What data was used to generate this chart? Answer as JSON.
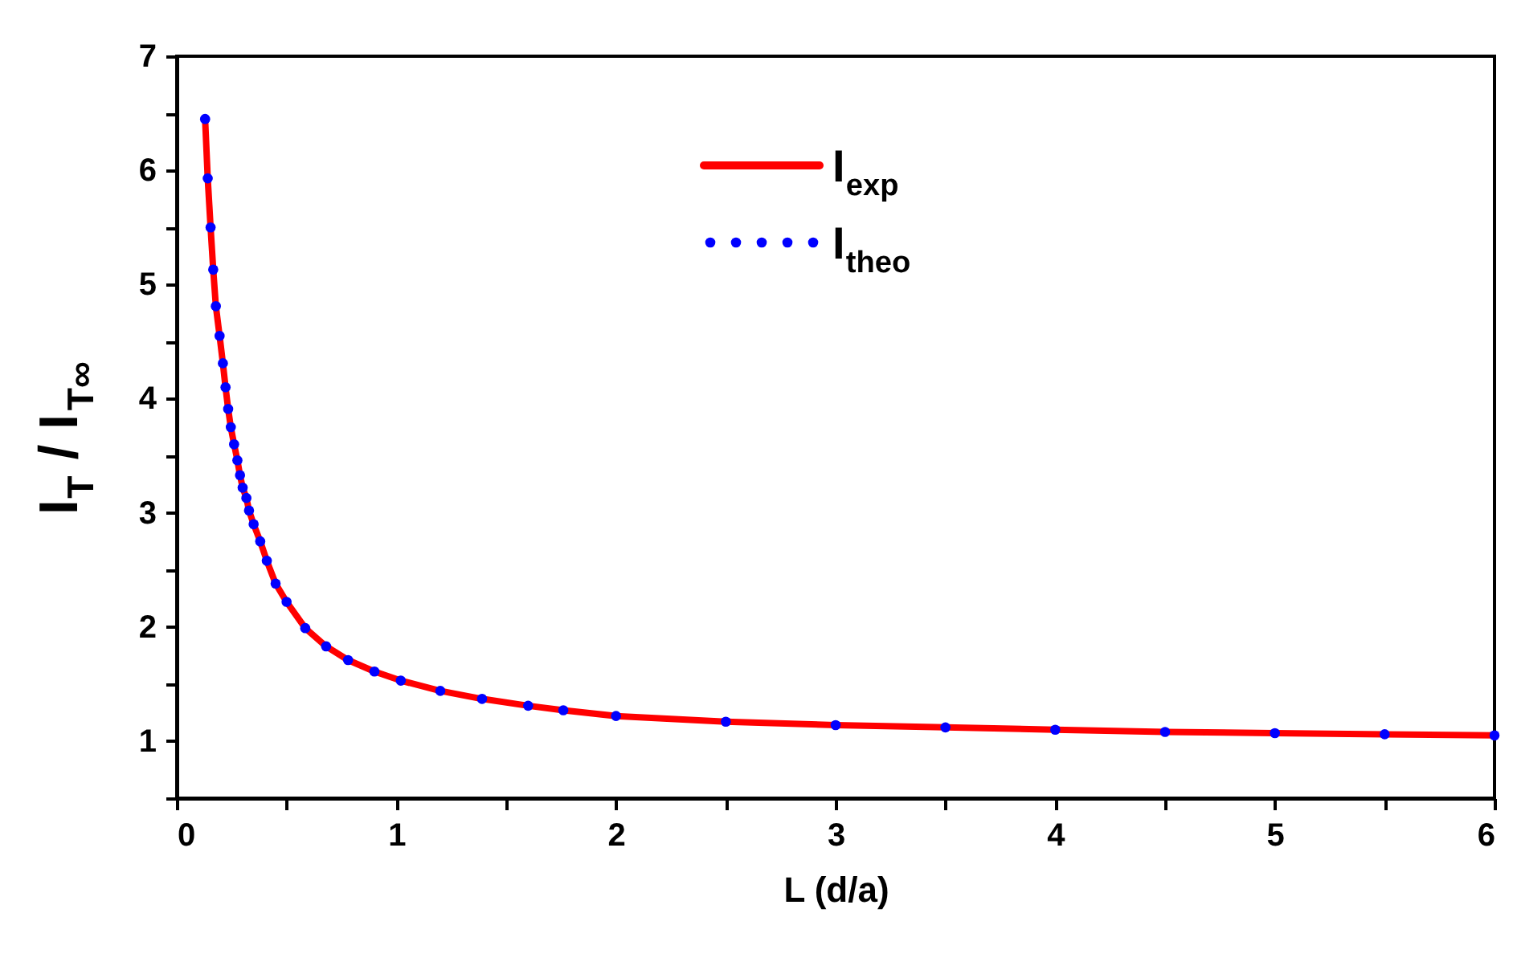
{
  "chart_data": {
    "type": "line",
    "xlabel": "L (d/a)",
    "ylabel": "I$_{T}$ / I$_{T∞}$",
    "x": [
      0.129,
      0.141,
      0.154,
      0.166,
      0.178,
      0.195,
      0.21,
      0.222,
      0.234,
      0.246,
      0.261,
      0.276,
      0.288,
      0.3,
      0.317,
      0.329,
      0.35,
      0.38,
      0.41,
      0.45,
      0.5,
      0.585,
      0.68,
      0.78,
      0.9,
      1.02,
      1.2,
      1.39,
      1.6,
      1.76,
      2,
      2.5,
      3,
      3.5,
      4,
      4.5,
      5,
      5.5,
      6
    ],
    "series": [
      {
        "name": "I$_{exp}$",
        "color": "#ff0000",
        "line_style": "solid",
        "marker": "none",
        "values": [
          6.45,
          5.93,
          5.5,
          5.13,
          4.81,
          4.55,
          4.31,
          4.1,
          3.91,
          3.75,
          3.6,
          3.46,
          3.33,
          3.22,
          3.13,
          3.02,
          2.9,
          2.75,
          2.58,
          2.38,
          2.22,
          1.99,
          1.83,
          1.71,
          1.61,
          1.53,
          1.44,
          1.37,
          1.31,
          1.27,
          1.22,
          1.17,
          1.14,
          1.12,
          1.1,
          1.08,
          1.07,
          1.06,
          1.05
        ]
      },
      {
        "name": "I$_{theo}$",
        "type": "scatter",
        "color": "#0000ff",
        "marker": "circle",
        "values": [
          6.45,
          5.93,
          5.5,
          5.13,
          4.81,
          4.55,
          4.31,
          4.1,
          3.91,
          3.75,
          3.6,
          3.46,
          3.33,
          3.22,
          3.13,
          3.02,
          2.9,
          2.75,
          2.58,
          2.38,
          2.22,
          1.99,
          1.83,
          1.71,
          1.61,
          1.53,
          1.44,
          1.37,
          1.31,
          1.27,
          1.22,
          1.17,
          1.14,
          1.12,
          1.1,
          1.08,
          1.07,
          1.06,
          1.05
        ]
      }
    ],
    "xlim": [
      0,
      6
    ],
    "xticks": [
      0,
      {
        "value": 0.5,
        "label": null
      },
      1,
      {
        "value": 1.5,
        "label": null
      },
      2,
      {
        "value": 2.5,
        "label": null
      },
      3,
      {
        "value": 3.5,
        "label": null
      },
      4,
      {
        "value": 4.5,
        "label": null
      },
      5,
      {
        "value": 5.5,
        "label": null
      },
      6
    ],
    "ylim": [
      0.5,
      7
    ],
    "yticks": [
      {
        "value": 0.5,
        "label": null
      },
      1,
      {
        "value": 1.5,
        "label": null
      },
      2,
      {
        "value": 2.5,
        "label": null
      },
      3,
      {
        "value": 3.5,
        "label": null
      },
      4,
      {
        "value": 4.5,
        "label": null
      },
      5,
      {
        "value": 5.5,
        "label": null
      },
      6,
      {
        "value": 6.5,
        "label": null
      },
      7
    ],
    "grid": false,
    "legend": "top"
  }
}
